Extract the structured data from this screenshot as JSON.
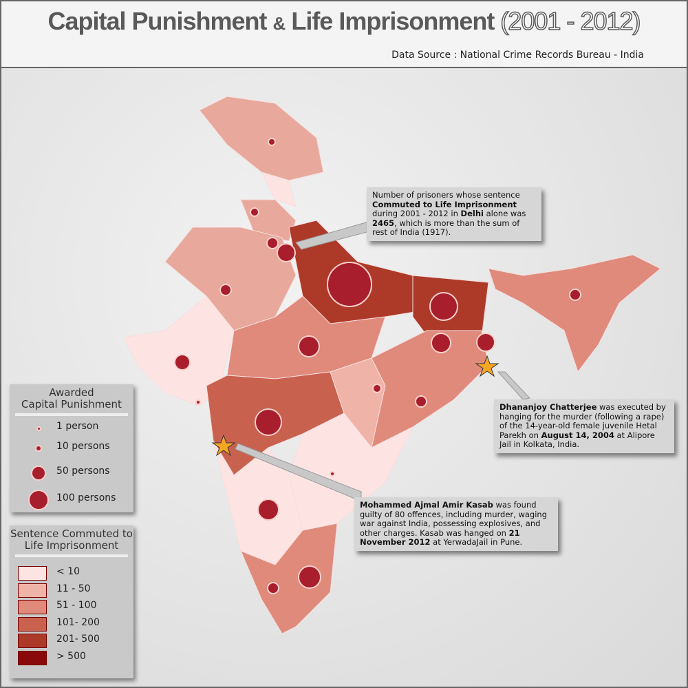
{
  "title": {
    "part1": "Capital Punishment",
    "amp": "&",
    "part2": "Life Imprisonment",
    "years": "(2001 - 2012)"
  },
  "source": "Data Source : National Crime Records Bureau - India",
  "legend_capital": {
    "title_lines": [
      "Awarded",
      "Capital Punishment"
    ],
    "items": [
      "1 person",
      "10 persons",
      "50 persons",
      "100 persons"
    ]
  },
  "legend_commuted": {
    "title_lines": [
      "Sentence Commuted to",
      "Life Imprisonment"
    ],
    "items": [
      {
        "label": "< 10",
        "color": "#fde4e2"
      },
      {
        "label": "11 - 50",
        "color": "#f0b3a8"
      },
      {
        "label": "51 - 100",
        "color": "#df8a7b"
      },
      {
        "label": "101- 200",
        "color": "#c9614f"
      },
      {
        "label": "201- 500",
        "color": "#ad3a29"
      },
      {
        "label": "> 500",
        "color": "#8a0a0c"
      }
    ]
  },
  "annotations": [
    {
      "segments": [
        {
          "text": "Number of prisoners whose sentence ",
          "bold": false
        },
        {
          "text": "Commuted to Life Imprisonment",
          "bold": true
        },
        {
          "text": " during 2001 - 2012 in ",
          "bold": false
        },
        {
          "text": "Delhi",
          "bold": true
        },
        {
          "text": " alone was ",
          "bold": false
        },
        {
          "text": "2465",
          "bold": true
        },
        {
          "text": ", which is more than the sum of rest of India (1917).",
          "bold": false
        }
      ]
    },
    {
      "segments": [
        {
          "text": "Dhananjoy Chatterjee",
          "bold": true
        },
        {
          "text": " was executed by hanging for the murder (following a rape) of the 14-year-old female juvenile Hetal Parekh on ",
          "bold": false
        },
        {
          "text": "August 14, 2004",
          "bold": true
        },
        {
          "text": " at Alipore Jail in Kolkata, India.",
          "bold": false
        }
      ]
    },
    {
      "segments": [
        {
          "text": "Mohammed Ajmal Amir Kasab",
          "bold": true
        },
        {
          "text": " was found guilty of 80 offences, including murder, waging war against India, possessing explosives, and other charges. Kasab was hanged on ",
          "bold": false
        },
        {
          "text": "21 November 2012",
          "bold": true
        },
        {
          "text": " at YerwadaJail in Pune.",
          "bold": false
        }
      ]
    }
  ]
}
